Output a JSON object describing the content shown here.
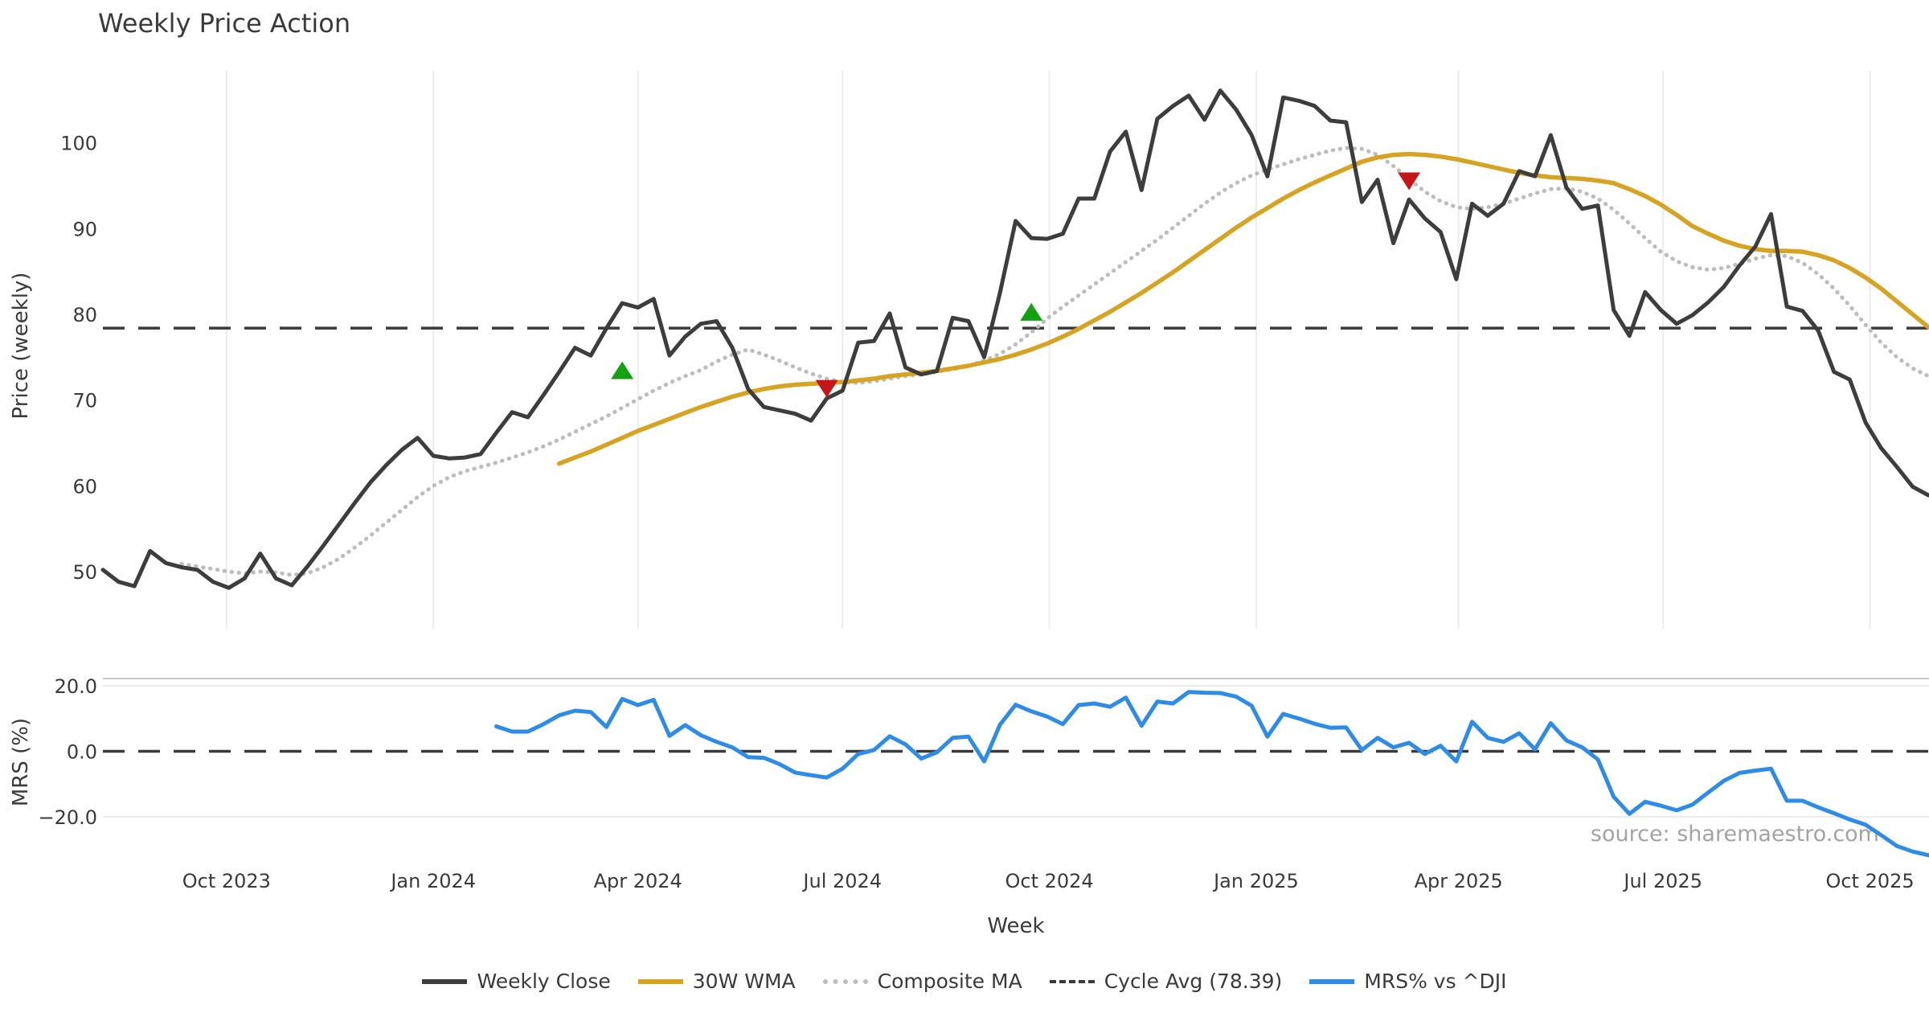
{
  "title": "Weekly Price Action",
  "xlabel": "Week",
  "source": "source: sharemaestro.com",
  "colors": {
    "close": "#3d3d3d",
    "wma": "#d6a323",
    "composite": "#bdbdbd",
    "cycle": "#3a3a3a",
    "mrs": "#2e8ce6",
    "buy": "#13a113",
    "sell": "#c51717",
    "grid": "#ececec",
    "spine": "#c9c9c9",
    "text": "#3a3a3a",
    "muted": "#a3a3a3"
  },
  "legend": [
    {
      "label": "Weekly Close",
      "style": "solid",
      "color": "#3d3d3d"
    },
    {
      "label": "30W WMA",
      "style": "solid",
      "color": "#d6a323"
    },
    {
      "label": "Composite MA",
      "style": "dotted",
      "color": "#bdbdbd"
    },
    {
      "label": "Cycle Avg (78.39)",
      "style": "dashed",
      "color": "#3a3a3a"
    },
    {
      "label": "MRS% vs ^DJI",
      "style": "solid",
      "color": "#2e8ce6"
    }
  ],
  "chart_data": {
    "type": "line",
    "x_unit": "weeks starting 2023-08-07",
    "x_ticks": [
      {
        "label": "Oct 2023",
        "week": 7.857
      },
      {
        "label": "Jan 2024",
        "week": 21.0
      },
      {
        "label": "Apr 2024",
        "week": 34.0
      },
      {
        "label": "Jul 2024",
        "week": 47.0
      },
      {
        "label": "Oct 2024",
        "week": 60.143
      },
      {
        "label": "Jan 2025",
        "week": 73.286
      },
      {
        "label": "Apr 2025",
        "week": 86.143
      },
      {
        "label": "Jul 2025",
        "week": 99.143
      },
      {
        "label": "Oct 2025",
        "week": 112.286
      }
    ],
    "panels": [
      {
        "name": "price",
        "ylabel": "Price (weekly)",
        "ylim": [
          43.5,
          108.5
        ],
        "yticks": [
          {
            "v": 50,
            "label": "50"
          },
          {
            "v": 60,
            "label": "60"
          },
          {
            "v": 70,
            "label": "70"
          },
          {
            "v": 80,
            "label": "80"
          },
          {
            "v": 90,
            "label": "90"
          },
          {
            "v": 100,
            "label": "100"
          }
        ],
        "cycle_avg": 78.39,
        "grid": "vertical",
        "series": [
          {
            "name": "Weekly Close",
            "start_week": 0,
            "values": [
              50.2,
              48.8,
              48.3,
              52.4,
              51.0,
              50.5,
              50.2,
              48.8,
              48.1,
              49.2,
              52.1,
              49.2,
              48.4,
              50.6,
              53.0,
              55.5,
              58.0,
              60.4,
              62.4,
              64.2,
              65.6,
              63.5,
              63.2,
              63.3,
              63.7,
              66.2,
              68.6,
              68.0,
              70.6,
              73.3,
              76.1,
              75.2,
              78.4,
              81.3,
              80.8,
              81.8,
              75.2,
              77.4,
              78.9,
              79.2,
              76.1,
              71.3,
              69.2,
              68.8,
              68.4,
              67.6,
              70.2,
              71.1,
              76.7,
              76.9,
              80.1,
              73.8,
              73.0,
              73.4,
              79.6,
              79.2,
              75.0,
              82.5,
              90.9,
              88.9,
              88.8,
              89.4,
              93.5,
              93.5,
              99.0,
              101.3,
              94.5,
              102.8,
              104.3,
              105.5,
              102.7,
              106.1,
              103.9,
              100.9,
              96.1,
              105.3,
              104.9,
              104.3,
              102.6,
              102.4,
              93.1,
              95.7,
              88.3,
              93.4,
              91.2,
              89.6,
              84.1,
              92.9,
              91.5,
              92.9,
              96.7,
              96.1,
              100.9,
              94.8,
              92.3,
              92.7,
              80.5,
              77.5,
              82.6,
              80.5,
              78.9,
              79.9,
              81.4,
              83.2,
              85.7,
              87.9,
              91.7,
              80.9,
              80.4,
              78.1,
              73.3,
              72.4,
              67.4,
              64.4,
              62.2,
              59.9,
              58.9
            ]
          },
          {
            "name": "30W WMA",
            "start_week": 29,
            "values": [
              62.6,
              63.3,
              64.0,
              64.8,
              65.6,
              66.4,
              67.1,
              67.8,
              68.5,
              69.2,
              69.8,
              70.4,
              70.9,
              71.3,
              71.6,
              71.8,
              71.9,
              72.0,
              72.1,
              72.3,
              72.5,
              72.8,
              73.0,
              73.2,
              73.4,
              73.7,
              74.0,
              74.4,
              74.8,
              75.3,
              75.9,
              76.6,
              77.4,
              78.3,
              79.3,
              80.3,
              81.4,
              82.5,
              83.7,
              84.9,
              86.2,
              87.5,
              88.8,
              90.1,
              91.3,
              92.4,
              93.5,
              94.5,
              95.4,
              96.2,
              97.0,
              97.8,
              98.3,
              98.6,
              98.7,
              98.6,
              98.4,
              98.1,
              97.7,
              97.3,
              96.9,
              96.5,
              96.2,
              96.0,
              95.9,
              95.8,
              95.6,
              95.3,
              94.6,
              93.8,
              92.8,
              91.6,
              90.3,
              89.4,
              88.6,
              88.0,
              87.6,
              87.4,
              87.4,
              87.3,
              86.9,
              86.3,
              85.4,
              84.3,
              83.0,
              81.5,
              80.0,
              78.5
            ]
          },
          {
            "name": "Composite MA",
            "start_week": 5,
            "values": [
              50.9,
              50.6,
              50.3,
              50.0,
              49.8,
              50.0,
              49.9,
              49.6,
              49.8,
              50.5,
              51.5,
              52.8,
              54.2,
              55.7,
              57.2,
              58.7,
              60.0,
              61.0,
              61.7,
              62.2,
              62.7,
              63.3,
              63.9,
              64.6,
              65.4,
              66.3,
              67.2,
              68.1,
              69.1,
              70.1,
              71.1,
              72.0,
              72.8,
              73.5,
              74.5,
              75.3,
              75.9,
              75.3,
              74.6,
              73.8,
              73.1,
              72.5,
              72.1,
              72.0,
              72.2,
              72.5,
              72.8,
              73.0,
              73.3,
              73.6,
              74.0,
              74.6,
              75.4,
              76.5,
              77.9,
              79.5,
              80.9,
              82.2,
              83.5,
              84.8,
              86.1,
              87.4,
              88.7,
              90.1,
              91.5,
              92.9,
              94.2,
              95.3,
              96.2,
              96.9,
              97.5,
              98.1,
              98.6,
              99.1,
              99.4,
              99.3,
              98.6,
              97.3,
              95.8,
              94.3,
              93.2,
              92.5,
              92.3,
              92.5,
              92.9,
              93.5,
              94.1,
              94.6,
              94.7,
              94.3,
              93.5,
              92.2,
              90.6,
              88.9,
              87.3,
              86.2,
              85.5,
              85.2,
              85.4,
              85.9,
              86.5,
              86.9,
              86.8,
              86.0,
              84.7,
              83.0,
              81.0,
              78.8,
              76.7,
              75.0,
              73.7,
              72.8
            ]
          }
        ],
        "markers": [
          {
            "week": 33,
            "value": 73.3,
            "type": "buy"
          },
          {
            "week": 46,
            "value": 71.5,
            "type": "sell"
          },
          {
            "week": 59,
            "value": 80.1,
            "type": "buy"
          },
          {
            "week": 83,
            "value": 95.7,
            "type": "sell"
          }
        ]
      },
      {
        "name": "mrs",
        "ylabel": "MRS (%)",
        "ylim": [
          -32,
          22
        ],
        "yticks": [
          {
            "v": 20,
            "label": "20.0"
          },
          {
            "v": 0,
            "label": "0.0"
          },
          {
            "v": -20,
            "label": "−20.0"
          }
        ],
        "zero_dashed": true,
        "series": [
          {
            "name": "MRS% vs ^DJI",
            "start_week": 25,
            "values": [
              7.6,
              6.0,
              6.0,
              8.3,
              11.0,
              12.4,
              12.0,
              7.4,
              16.0,
              14.1,
              15.7,
              4.7,
              8.0,
              4.9,
              2.9,
              1.2,
              -1.8,
              -2.0,
              -3.9,
              -6.5,
              -7.3,
              -8.0,
              -5.3,
              -0.8,
              0.4,
              4.6,
              2.1,
              -2.2,
              -0.3,
              4.1,
              4.5,
              -3.1,
              8.1,
              14.2,
              12.2,
              10.6,
              8.3,
              14.1,
              14.6,
              13.6,
              16.4,
              7.8,
              15.2,
              14.6,
              18.1,
              17.9,
              17.8,
              16.7,
              13.9,
              4.5,
              11.4,
              10.0,
              8.4,
              7.2,
              7.3,
              0.4,
              4.1,
              1.2,
              2.6,
              -0.8,
              1.7,
              -3.1,
              9.0,
              4.1,
              2.9,
              5.5,
              0.6,
              8.6,
              3.3,
              1.2,
              -2.5,
              -13.9,
              -19.1,
              -15.4,
              -16.6,
              -18.0,
              -16.3,
              -12.6,
              -9.0,
              -6.6,
              -5.9,
              -5.3,
              -15.1,
              -15.1,
              -17.1,
              -18.9,
              -20.8,
              -22.4,
              -25.6,
              -28.9,
              -30.6,
              -31.7
            ]
          }
        ]
      }
    ]
  }
}
